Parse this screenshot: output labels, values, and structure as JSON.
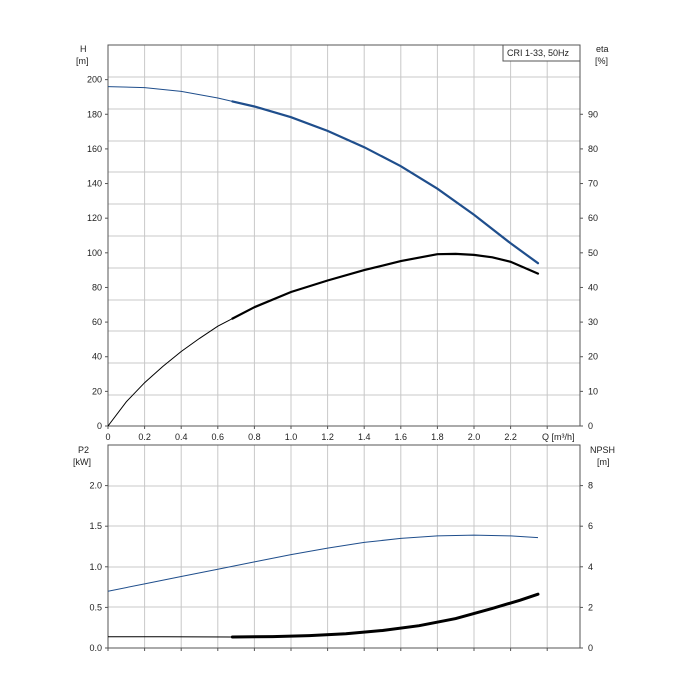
{
  "chart_data": [
    {
      "type": "line",
      "legend_box": "CRI 1-33, 50Hz",
      "x_label": "Q [m³/h]",
      "x_ticks": [
        "0",
        "0.2",
        "0.4",
        "0.6",
        "0.8",
        "1.0",
        "1.2",
        "1.4",
        "1.6",
        "1.8",
        "2.0",
        "2.2"
      ],
      "xlim": [
        0,
        2.6
      ],
      "left_axis": {
        "label_line1": "H",
        "label_line2": "[m]",
        "ylim": [
          0,
          220
        ],
        "ticks": [
          "0",
          "20",
          "40",
          "60",
          "80",
          "100",
          "120",
          "140",
          "160",
          "180",
          "200"
        ]
      },
      "right_axis": {
        "label_line1": "eta",
        "label_line2": "[%]",
        "ylim": [
          0,
          110
        ],
        "ticks": [
          "0",
          "10",
          "20",
          "30",
          "40",
          "50",
          "60",
          "70",
          "80",
          "90"
        ]
      },
      "grid": true,
      "series": [
        {
          "axis": "left",
          "color": "#1f4e8c",
          "thick_from": 0.68,
          "x": [
            0,
            0.2,
            0.4,
            0.6,
            0.8,
            1.0,
            1.2,
            1.4,
            1.6,
            1.8,
            2.0,
            2.2,
            2.35
          ],
          "y": [
            196,
            195.4,
            193.2,
            189.4,
            184.5,
            178.3,
            170.4,
            161.0,
            150.0,
            137.0,
            122.0,
            105.5,
            94.0
          ]
        },
        {
          "axis": "right",
          "color": "#000000",
          "thick_from": 0.68,
          "x": [
            0,
            0.1,
            0.2,
            0.3,
            0.4,
            0.5,
            0.6,
            0.8,
            1.0,
            1.2,
            1.4,
            1.6,
            1.8,
            1.9,
            2.0,
            2.1,
            2.2,
            2.35
          ],
          "y": [
            0,
            7.0,
            12.5,
            17.2,
            21.5,
            25.3,
            28.8,
            34.3,
            38.7,
            42.0,
            45.0,
            47.6,
            49.6,
            49.7,
            49.4,
            48.7,
            47.4,
            44.0
          ]
        }
      ]
    },
    {
      "type": "line",
      "x_ticks": [],
      "xlim": [
        0,
        2.6
      ],
      "left_axis": {
        "label_line1": "P2",
        "label_line2": "[kW]",
        "ylim": [
          0,
          2.5
        ],
        "ticks": [
          "0.0",
          "0.5",
          "1.0",
          "1.5",
          "2.0"
        ]
      },
      "right_axis": {
        "label_line1": "NPSH",
        "label_line2": "[m]",
        "ylim": [
          0,
          10
        ],
        "ticks": [
          "0",
          "2",
          "4",
          "6",
          "8"
        ]
      },
      "grid": true,
      "series": [
        {
          "axis": "left",
          "color": "#1f4e8c",
          "thick_from": 99,
          "x": [
            0,
            0.2,
            0.4,
            0.6,
            0.8,
            1.0,
            1.2,
            1.4,
            1.6,
            1.8,
            2.0,
            2.2,
            2.35
          ],
          "y": [
            0.7,
            0.79,
            0.88,
            0.97,
            1.06,
            1.15,
            1.23,
            1.3,
            1.35,
            1.38,
            1.39,
            1.38,
            1.36
          ]
        },
        {
          "axis": "right",
          "color": "#000000",
          "thick_from": 0.68,
          "x": [
            0,
            0.3,
            0.68,
            0.9,
            1.1,
            1.3,
            1.5,
            1.7,
            1.9,
            2.1,
            2.25,
            2.35
          ],
          "y": [
            0.55,
            0.55,
            0.54,
            0.56,
            0.61,
            0.7,
            0.86,
            1.1,
            1.45,
            1.95,
            2.35,
            2.65
          ]
        }
      ]
    }
  ]
}
